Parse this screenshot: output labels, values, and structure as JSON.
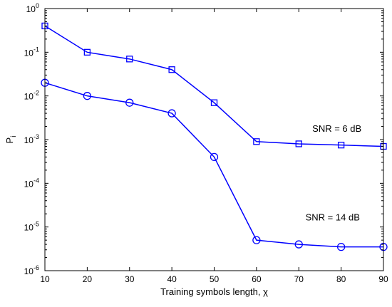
{
  "chart_data": {
    "type": "line",
    "title": "",
    "xlabel": "Training symbols length, χ",
    "ylabel": "P",
    "ylabel_subscript": "i",
    "xlim": [
      10,
      90
    ],
    "ylim": [
      1e-06,
      1
    ],
    "yscale": "log",
    "grid": false,
    "x": [
      10,
      20,
      30,
      40,
      50,
      60,
      70,
      80,
      90
    ],
    "xticks": [
      10,
      20,
      30,
      40,
      50,
      60,
      70,
      80,
      90
    ],
    "yticks": [
      {
        "value": 1,
        "base": "10",
        "exp": "0"
      },
      {
        "value": 0.1,
        "base": "10",
        "exp": "-1"
      },
      {
        "value": 0.01,
        "base": "10",
        "exp": "-2"
      },
      {
        "value": 0.001,
        "base": "10",
        "exp": "-3"
      },
      {
        "value": 0.0001,
        "base": "10",
        "exp": "-4"
      },
      {
        "value": 1e-05,
        "base": "10",
        "exp": "-5"
      },
      {
        "value": 1e-06,
        "base": "10",
        "exp": "-6"
      }
    ],
    "color": "#0000ff",
    "series": [
      {
        "marker": "square",
        "values": [
          0.4,
          0.1,
          0.07,
          0.04,
          0.007,
          0.0009,
          0.0008,
          0.00075,
          0.0007
        ]
      },
      {
        "marker": "circle",
        "values": [
          0.02,
          0.01,
          0.007,
          0.004,
          0.0004,
          5e-06,
          4e-06,
          3.5e-06,
          3.5e-06
        ]
      }
    ],
    "annotations": [
      {
        "text": "SNR = 6 dB",
        "x": 79,
        "y": 0.0015
      },
      {
        "text": "SNR = 14 dB",
        "x": 78,
        "y": 1.4e-05
      }
    ]
  }
}
